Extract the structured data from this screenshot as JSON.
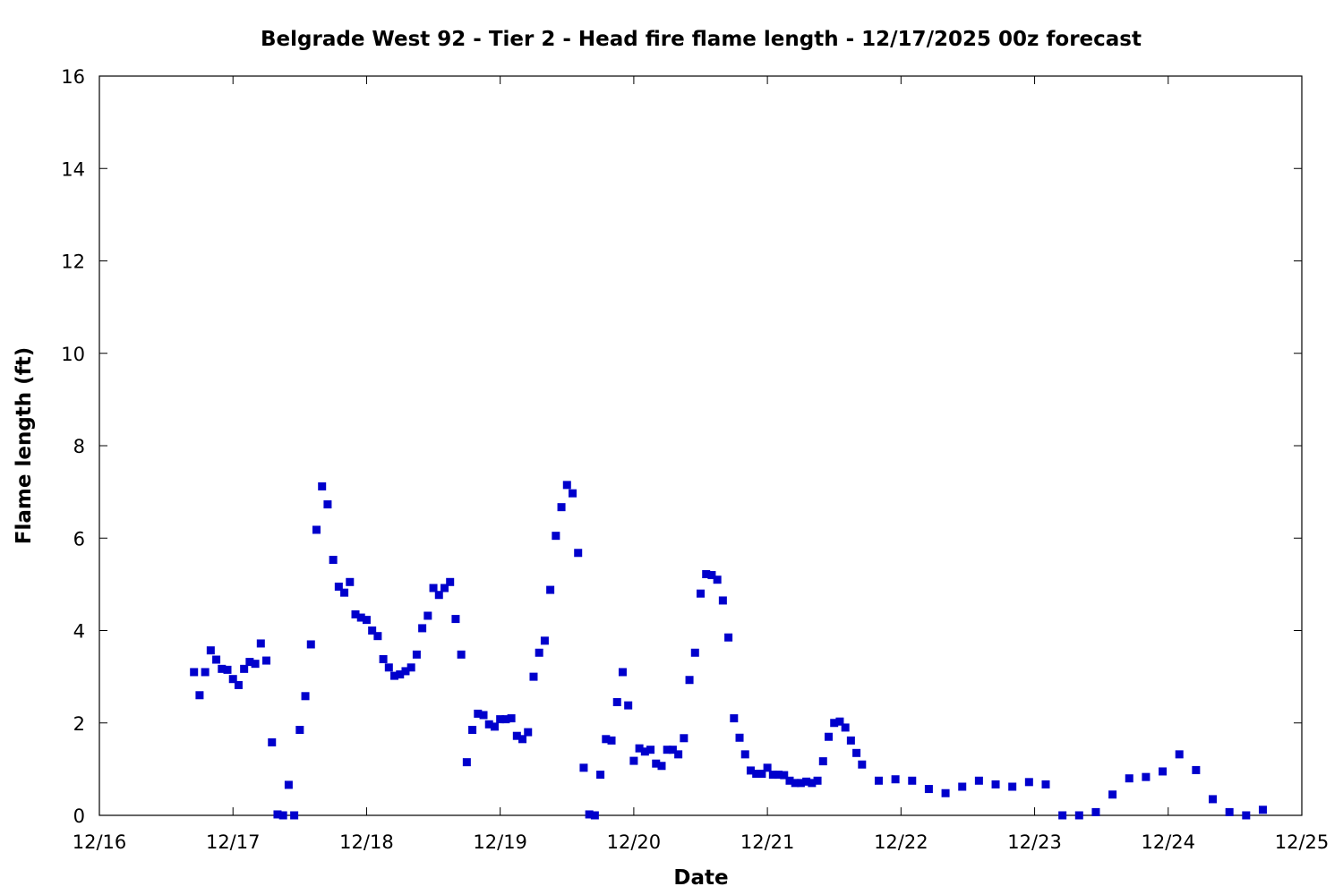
{
  "chart_data": {
    "type": "scatter",
    "title": "Belgrade West 92 - Tier 2 - Head fire flame length - 12/17/2025 00z forecast",
    "xlabel": "Date",
    "ylabel": "Flame length (ft)",
    "xlim": [
      "12/16",
      "12/25"
    ],
    "ylim": [
      0,
      16
    ],
    "x_ticks": [
      "12/16",
      "12/17",
      "12/18",
      "12/19",
      "12/20",
      "12/21",
      "12/22",
      "12/23",
      "12/24",
      "12/25"
    ],
    "y_ticks": [
      "0",
      "2",
      "4",
      "6",
      "8",
      "10",
      "12",
      "14",
      "16"
    ],
    "grid": false,
    "legend": "none",
    "marker": "square",
    "color": "#0000cc",
    "series": [
      {
        "x": [
          "2025-12-16 17:00",
          "2025-12-16 18:00",
          "2025-12-16 19:00",
          "2025-12-16 20:00",
          "2025-12-16 21:00",
          "2025-12-16 22:00",
          "2025-12-16 23:00",
          "2025-12-17 00:00",
          "2025-12-17 01:00",
          "2025-12-17 02:00",
          "2025-12-17 03:00",
          "2025-12-17 04:00",
          "2025-12-17 05:00",
          "2025-12-17 06:00",
          "2025-12-17 07:00",
          "2025-12-17 08:00",
          "2025-12-17 09:00",
          "2025-12-17 10:00",
          "2025-12-17 11:00",
          "2025-12-17 12:00",
          "2025-12-17 13:00",
          "2025-12-17 14:00",
          "2025-12-17 15:00",
          "2025-12-17 16:00",
          "2025-12-17 17:00",
          "2025-12-17 18:00",
          "2025-12-17 19:00",
          "2025-12-17 20:00",
          "2025-12-17 21:00",
          "2025-12-17 22:00",
          "2025-12-17 23:00",
          "2025-12-18 00:00",
          "2025-12-18 01:00",
          "2025-12-18 02:00",
          "2025-12-18 03:00",
          "2025-12-18 04:00",
          "2025-12-18 05:00",
          "2025-12-18 06:00",
          "2025-12-18 07:00",
          "2025-12-18 08:00",
          "2025-12-18 09:00",
          "2025-12-18 10:00",
          "2025-12-18 11:00",
          "2025-12-18 12:00",
          "2025-12-18 13:00",
          "2025-12-18 14:00",
          "2025-12-18 15:00",
          "2025-12-18 16:00",
          "2025-12-18 17:00",
          "2025-12-18 18:00",
          "2025-12-18 19:00",
          "2025-12-18 20:00",
          "2025-12-18 21:00",
          "2025-12-18 22:00",
          "2025-12-18 23:00",
          "2025-12-19 00:00",
          "2025-12-19 01:00",
          "2025-12-19 02:00",
          "2025-12-19 03:00",
          "2025-12-19 04:00",
          "2025-12-19 05:00",
          "2025-12-19 06:00",
          "2025-12-19 07:00",
          "2025-12-19 08:00",
          "2025-12-19 09:00",
          "2025-12-19 10:00",
          "2025-12-19 11:00",
          "2025-12-19 12:00",
          "2025-12-19 13:00",
          "2025-12-19 14:00",
          "2025-12-19 15:00",
          "2025-12-19 16:00",
          "2025-12-19 17:00",
          "2025-12-19 18:00",
          "2025-12-19 19:00",
          "2025-12-19 20:00",
          "2025-12-19 21:00",
          "2025-12-19 22:00",
          "2025-12-19 23:00",
          "2025-12-20 00:00",
          "2025-12-20 01:00",
          "2025-12-20 02:00",
          "2025-12-20 03:00",
          "2025-12-20 04:00",
          "2025-12-20 05:00",
          "2025-12-20 06:00",
          "2025-12-20 07:00",
          "2025-12-20 08:00",
          "2025-12-20 09:00",
          "2025-12-20 10:00",
          "2025-12-20 11:00",
          "2025-12-20 12:00",
          "2025-12-20 13:00",
          "2025-12-20 14:00",
          "2025-12-20 15:00",
          "2025-12-20 16:00",
          "2025-12-20 17:00",
          "2025-12-20 18:00",
          "2025-12-20 19:00",
          "2025-12-20 20:00",
          "2025-12-20 21:00",
          "2025-12-20 22:00",
          "2025-12-20 23:00",
          "2025-12-21 00:00",
          "2025-12-21 01:00",
          "2025-12-21 02:00",
          "2025-12-21 03:00",
          "2025-12-21 04:00",
          "2025-12-21 05:00",
          "2025-12-21 06:00",
          "2025-12-21 07:00",
          "2025-12-21 08:00",
          "2025-12-21 09:00",
          "2025-12-21 10:00",
          "2025-12-21 11:00",
          "2025-12-21 12:00",
          "2025-12-21 13:00",
          "2025-12-21 14:00",
          "2025-12-21 15:00",
          "2025-12-21 16:00",
          "2025-12-21 17:00",
          "2025-12-21 20:00",
          "2025-12-21 23:00",
          "2025-12-22 02:00",
          "2025-12-22 05:00",
          "2025-12-22 08:00",
          "2025-12-22 11:00",
          "2025-12-22 14:00",
          "2025-12-22 17:00",
          "2025-12-22 20:00",
          "2025-12-22 23:00",
          "2025-12-23 02:00",
          "2025-12-23 05:00",
          "2025-12-23 08:00",
          "2025-12-23 11:00",
          "2025-12-23 14:00",
          "2025-12-23 17:00",
          "2025-12-23 20:00",
          "2025-12-23 23:00",
          "2025-12-24 02:00",
          "2025-12-24 05:00",
          "2025-12-24 08:00",
          "2025-12-24 11:00",
          "2025-12-24 14:00",
          "2025-12-24 17:00"
        ],
        "y": [
          3.1,
          2.6,
          3.1,
          3.57,
          3.37,
          3.17,
          3.15,
          2.95,
          2.82,
          3.17,
          3.32,
          3.28,
          3.72,
          3.35,
          1.58,
          0.02,
          0.0,
          0.66,
          0.0,
          1.85,
          2.58,
          3.7,
          6.18,
          7.12,
          6.73,
          5.53,
          4.95,
          4.82,
          5.05,
          4.35,
          4.28,
          4.23,
          4.0,
          3.88,
          3.38,
          3.2,
          3.02,
          3.05,
          3.12,
          3.2,
          3.48,
          4.05,
          4.32,
          4.92,
          4.77,
          4.92,
          5.05,
          4.25,
          3.48,
          1.15,
          1.85,
          2.2,
          2.17,
          1.97,
          1.92,
          2.08,
          2.08,
          2.1,
          1.72,
          1.65,
          1.8,
          3.0,
          3.52,
          3.78,
          4.88,
          6.05,
          6.67,
          7.15,
          6.97,
          5.68,
          1.03,
          0.02,
          0.0,
          0.88,
          1.65,
          1.62,
          2.45,
          3.1,
          2.38,
          1.18,
          1.45,
          1.38,
          1.42,
          1.12,
          1.07,
          1.42,
          1.42,
          1.32,
          1.67,
          2.93,
          3.52,
          4.8,
          5.22,
          5.2,
          5.1,
          4.65,
          3.85,
          2.1,
          1.68,
          1.32,
          0.97,
          0.9,
          0.9,
          1.03,
          0.88,
          0.88,
          0.87,
          0.75,
          0.7,
          0.7,
          0.73,
          0.7,
          0.75,
          1.17,
          1.7,
          2.0,
          2.03,
          1.9,
          1.62,
          1.35,
          1.1,
          0.75,
          0.78,
          0.75,
          0.57,
          0.48,
          0.62,
          0.75,
          0.67,
          0.62,
          0.72,
          0.67,
          0.0,
          0.0,
          0.07,
          0.45,
          0.8,
          0.83,
          0.95,
          1.32,
          0.98,
          0.35,
          0.07,
          0.0,
          0.12
        ]
      }
    ]
  }
}
